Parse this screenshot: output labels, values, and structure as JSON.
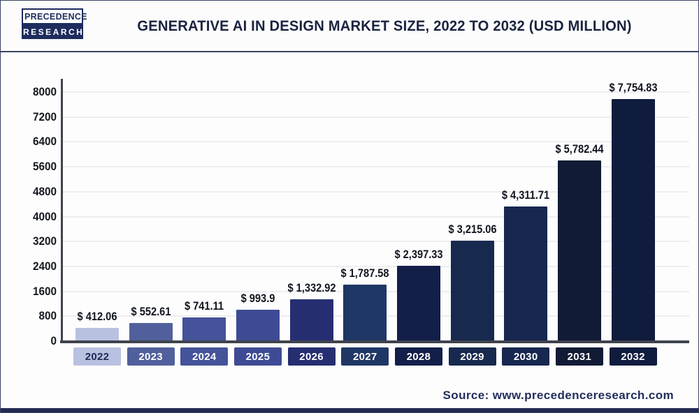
{
  "page": {
    "logo": {
      "line1": "PRECEDENCE",
      "line2": "RESEARCH"
    },
    "title": "GENERATIVE AI IN DESIGN MARKET SIZE, 2022 TO 2032 (USD MILLION)",
    "source": "Source: www.precedenceresearch.com"
  },
  "colors": {
    "navy_brand": "#1e2c5e",
    "title_text": "#1a2340",
    "axis_line": "#40434e",
    "gridline": "#ededf2",
    "value_label_text": "#10151f",
    "source_text": "#232e5c",
    "year_text_light": "#ffffff",
    "year_text_dark": "#1e2a55"
  },
  "chart_data": {
    "type": "bar",
    "title": "Generative AI in Design Market Size, 2022 to 2032 (USD Million)",
    "xlabel": "",
    "ylabel": "",
    "categories": [
      "2022",
      "2023",
      "2024",
      "2025",
      "2026",
      "2027",
      "2028",
      "2029",
      "2030",
      "2031",
      "2032"
    ],
    "values": [
      412.06,
      552.61,
      741.11,
      993.9,
      1332.92,
      1787.58,
      2397.33,
      3215.06,
      4311.71,
      5782.44,
      7754.83
    ],
    "value_labels": [
      "$ 412.06",
      "$ 552.61",
      "$ 741.11",
      "$ 993.9",
      "$ 1,332.92",
      "$ 1,787.58",
      "$ 2,397.33",
      "$ 3,215.06",
      "$ 4,311.71",
      "$ 5,782.44",
      "$ 7,754.83"
    ],
    "bar_colors": [
      "#b9c1e1",
      "#51609c",
      "#45539a",
      "#3e4b94",
      "#262e72",
      "#1f3765",
      "#131f49",
      "#17294e",
      "#17274f",
      "#111b35",
      "#101c3e"
    ],
    "year_text_colors": [
      "#1e2a55",
      "#ffffff",
      "#ffffff",
      "#ffffff",
      "#ffffff",
      "#ffffff",
      "#ffffff",
      "#ffffff",
      "#ffffff",
      "#ffffff",
      "#ffffff"
    ],
    "y_ticks": [
      0,
      800,
      1600,
      2400,
      3200,
      4000,
      4800,
      5600,
      6400,
      7200,
      8000
    ],
    "ylim": [
      0,
      8400
    ],
    "grid": true,
    "legend": false,
    "unit": "USD Million"
  }
}
